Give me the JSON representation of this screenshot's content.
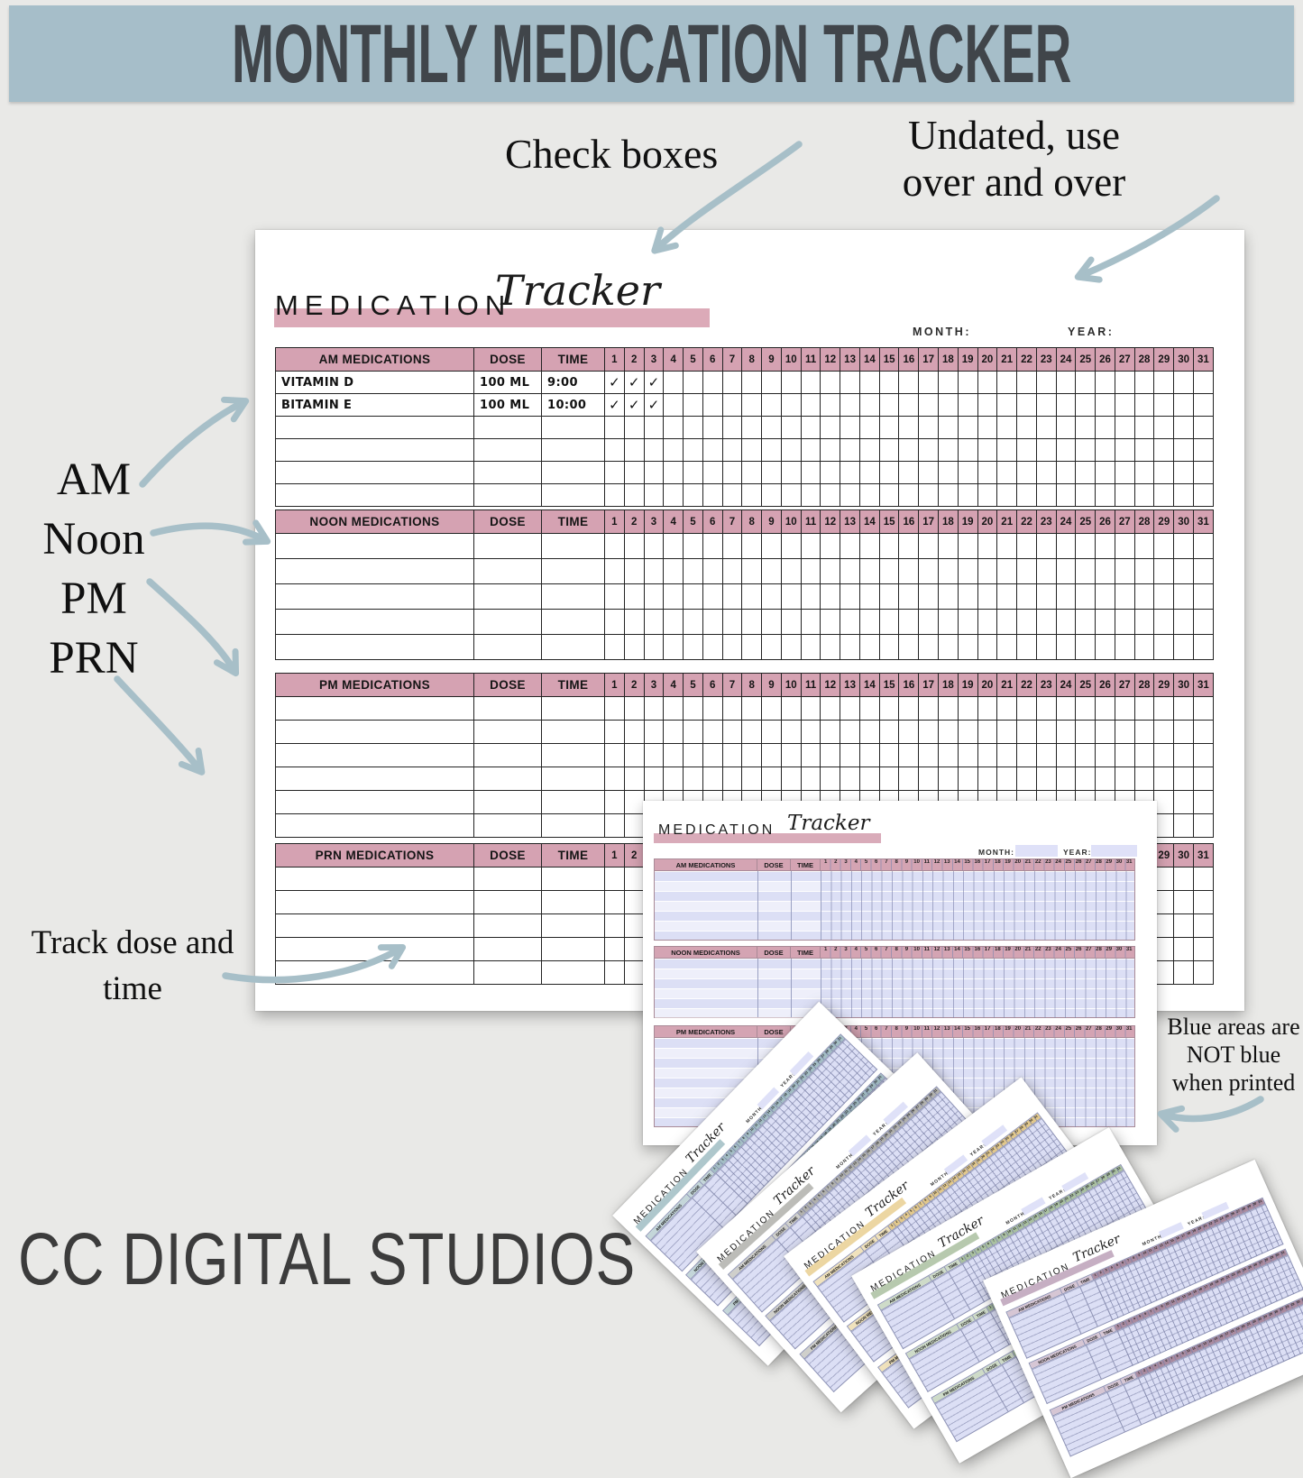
{
  "banner": {
    "title": "MONTHLY MEDICATION TRACKER"
  },
  "annotations": {
    "check_boxes": "Check boxes",
    "undated": [
      "Undated, use",
      "over and over"
    ],
    "schedule": [
      "AM",
      "Noon",
      "PM",
      "PRN"
    ],
    "track": [
      "Track dose and",
      "time"
    ],
    "blue_note": [
      "Blue areas are",
      "NOT blue",
      "when printed"
    ],
    "brand": "CC DIGITAL STUDIOS"
  },
  "tracker_labels": {
    "title_word": "MEDICATION",
    "title_script": "Tracker",
    "month": "MONTH:",
    "year": "YEAR:",
    "dose": "DOSE",
    "time": "TIME",
    "check": "✓"
  },
  "days": [
    1,
    2,
    3,
    4,
    5,
    6,
    7,
    8,
    9,
    10,
    11,
    12,
    13,
    14,
    15,
    16,
    17,
    18,
    19,
    20,
    21,
    22,
    23,
    24,
    25,
    26,
    27,
    28,
    29,
    30,
    31
  ],
  "main_sheet": {
    "sections": [
      {
        "label": "AM MEDICATIONS",
        "row_count": 6,
        "entries": [
          {
            "name": "VITAMIN D",
            "dose": "100 ML",
            "time": "9:00",
            "checked_days": [
              1,
              2,
              3
            ]
          },
          {
            "name": "BITAMIN E",
            "dose": "100 ML",
            "time": "10:00",
            "checked_days": [
              1,
              2,
              3
            ]
          }
        ]
      },
      {
        "label": "NOON MEDICATIONS",
        "row_count": 5,
        "entries": []
      },
      {
        "label": "PM MEDICATIONS",
        "row_count": 6,
        "entries": []
      },
      {
        "label": "PRN MEDICATIONS",
        "row_count": 5,
        "entries": []
      }
    ]
  },
  "blue_sheet": {
    "sections": [
      {
        "label": "AM MEDICATIONS",
        "row_count": 7
      },
      {
        "label": "NOON MEDICATIONS",
        "row_count": 6
      },
      {
        "label": "PM MEDICATIONS",
        "row_count": 9
      }
    ]
  },
  "fan_sections": [
    {
      "label": "AM MEDICATIONS",
      "row_count": 7
    },
    {
      "label": "NOON MEDICATIONS",
      "row_count": 6
    },
    {
      "label": "PM MEDICATIONS",
      "row_count": 7
    }
  ],
  "fan_sheets": [
    {
      "accent_name": "teal",
      "bar": "#aec7cc",
      "header": "#c4d6d9",
      "strip": "#a3bdc4"
    },
    {
      "accent_name": "gray",
      "bar": "#bcbcb8",
      "header": "#cfcfcb",
      "strip": "#b1b1ad"
    },
    {
      "accent_name": "tan",
      "bar": "#ecd6a2",
      "header": "#f0e2bc",
      "strip": "#e2c88b"
    },
    {
      "accent_name": "green",
      "bar": "#b7c9ae",
      "header": "#cedbc8",
      "strip": "#a9c0a0"
    },
    {
      "accent_name": "mauve",
      "bar": "#c6afc3",
      "header": "#d6c6d4",
      "strip": "#a98a9f"
    }
  ],
  "colors": {
    "banner_bg": "#a6bec9",
    "banner_text": "#40454a",
    "page_bg": "#e9e9e7",
    "pink_header": "#d5a2b2",
    "pink_bar": "#dcaab8",
    "lavender": "#dcdff5",
    "lavender_box": "#dfe1f8",
    "arrow": "#a7bfc8",
    "table_border": "#232323"
  }
}
